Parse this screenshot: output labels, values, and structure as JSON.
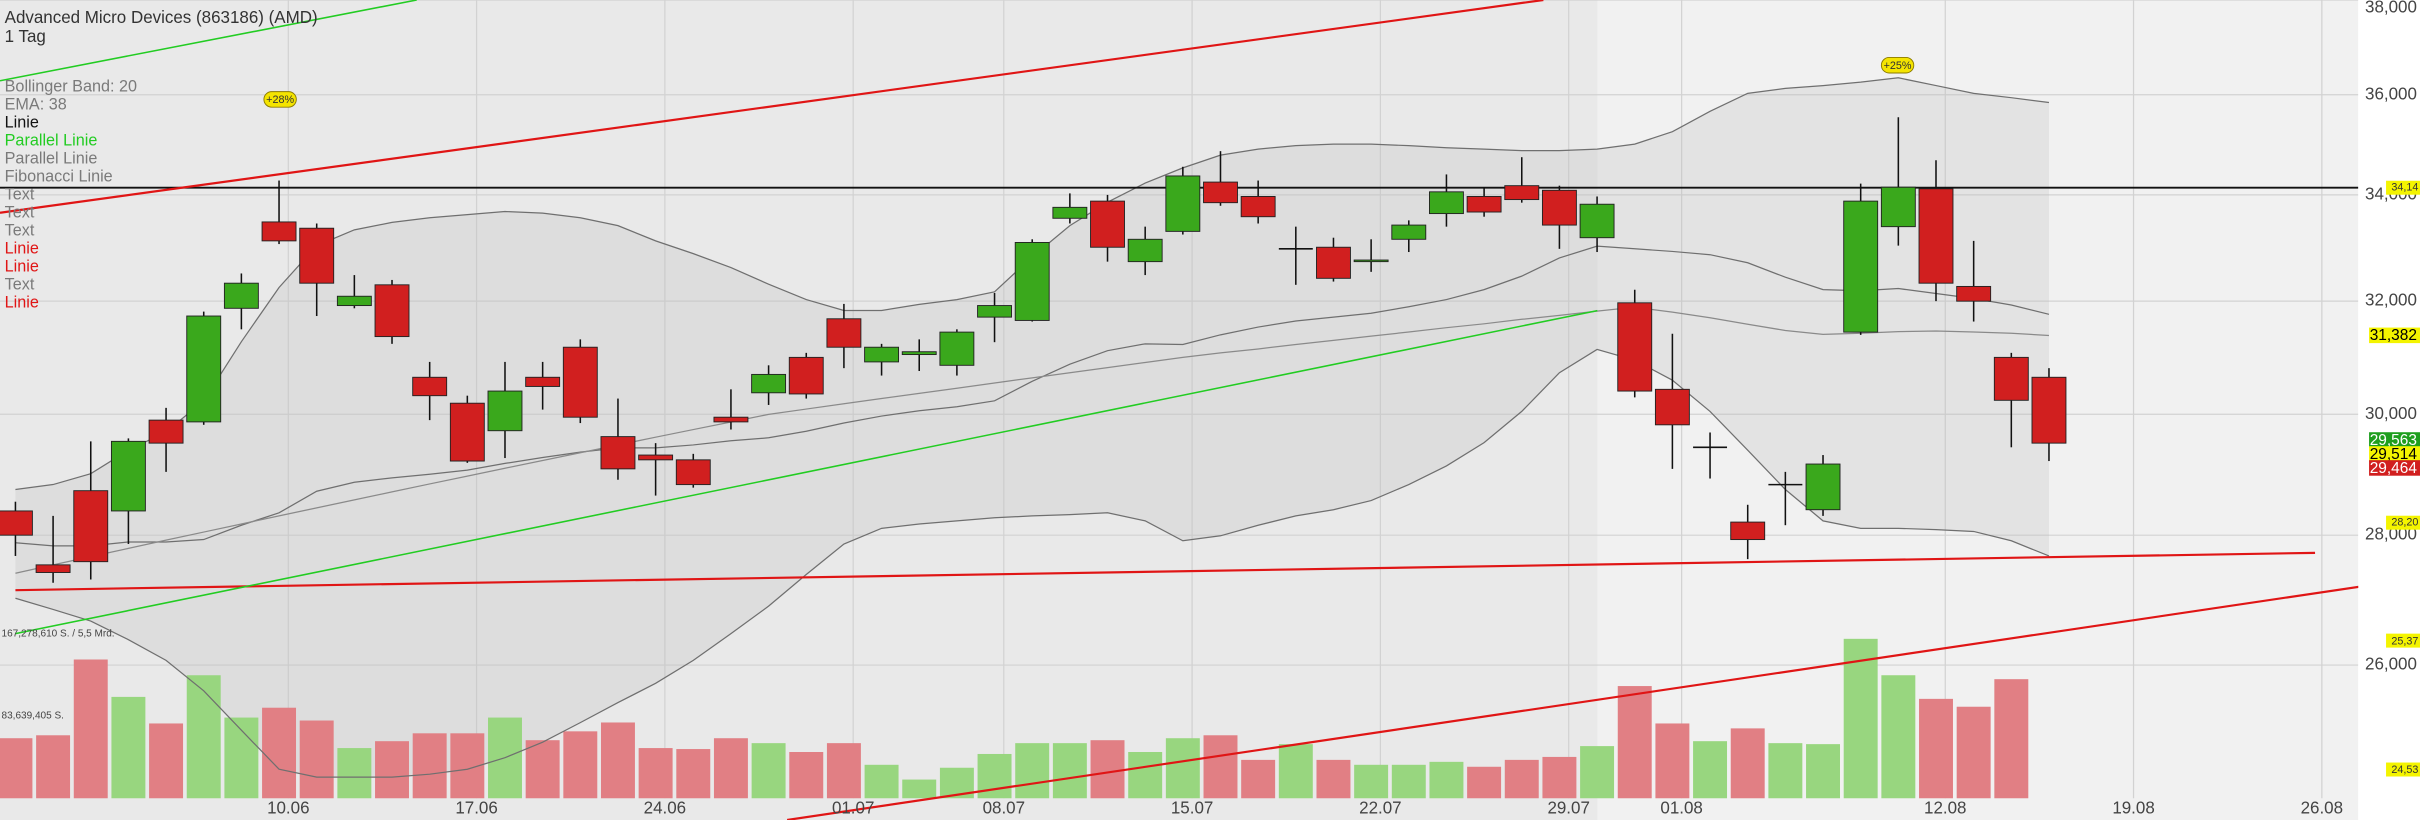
{
  "chart_data": {
    "type": "candlestick",
    "title": "Advanced Micro Devices (863186) (AMD)",
    "subtitle": "1 Tag",
    "categories": [
      null,
      null,
      null,
      null,
      null,
      null,
      null,
      "10.06",
      null,
      null,
      null,
      null,
      "17.06",
      null,
      null,
      null,
      null,
      "24.06",
      null,
      null,
      null,
      null,
      "01.07",
      null,
      null,
      null,
      "08.07",
      null,
      null,
      null,
      null,
      "15.07",
      null,
      null,
      null,
      null,
      "22.07",
      null,
      null,
      null,
      null,
      "29.07",
      null,
      null,
      "01.08",
      null,
      null,
      null,
      null,
      null,
      null,
      "12.08",
      null,
      null,
      null,
      null,
      "19.08",
      null,
      null,
      null,
      null,
      "26.08"
    ],
    "open": [
      28390,
      27530,
      28720,
      28390,
      29900,
      29870,
      31870,
      33480,
      33360,
      31920,
      32300,
      30640,
      30190,
      29720,
      30640,
      31170,
      29620,
      29310,
      29230,
      29950,
      30370,
      30990,
      31680,
      30910,
      31040,
      30850,
      31710,
      31650,
      33550,
      33880,
      32730,
      33300,
      34250,
      33970,
      32970,
      33000,
      32730,
      33150,
      33640,
      33970,
      34180,
      34090,
      33180,
      31970,
      30430,
      29440,
      28210,
      28820,
      28410,
      31440,
      33390,
      34120,
      32270,
      30990,
      30640,
      null,
      null,
      null,
      null,
      null,
      null,
      null
    ],
    "high": [
      28540,
      28310,
      29540,
      29590,
      30110,
      31810,
      32510,
      34280,
      33450,
      32480,
      32390,
      30910,
      30320,
      30910,
      30910,
      31310,
      30270,
      29510,
      29330,
      30430,
      30850,
      31070,
      31950,
      31230,
      31310,
      31490,
      32150,
      33150,
      34030,
      34000,
      33390,
      34550,
      34860,
      34280,
      33390,
      33180,
      33150,
      33510,
      34400,
      34150,
      34740,
      34180,
      33970,
      32210,
      31410,
      29690,
      28490,
      29030,
      29310,
      34220,
      35540,
      34680,
      33120,
      31070,
      30800,
      null,
      null,
      null,
      null,
      null,
      null,
      null
    ],
    "low": [
      27670,
      27250,
      27300,
      27860,
      29030,
      29820,
      31490,
      33060,
      31730,
      31870,
      31230,
      29900,
      29180,
      29260,
      30080,
      29850,
      28900,
      28640,
      28770,
      29740,
      30160,
      30270,
      30800,
      30670,
      30750,
      30670,
      31260,
      31630,
      33450,
      32730,
      32480,
      33240,
      33790,
      33450,
      32300,
      32360,
      32540,
      32910,
      33390,
      33580,
      33850,
      32970,
      32910,
      30290,
      29080,
      28920,
      27620,
      28160,
      28310,
      31390,
      33030,
      32000,
      31630,
      29440,
      29210,
      null,
      null,
      null,
      null,
      null,
      null,
      null
    ],
    "close": [
      28000,
      27410,
      27580,
      29540,
      29510,
      31730,
      32330,
      33120,
      32330,
      32090,
      31360,
      30320,
      29210,
      30400,
      30480,
      29950,
      29080,
      29230,
      28820,
      29870,
      30690,
      30350,
      31170,
      31170,
      31090,
      31440,
      31920,
      33090,
      33760,
      33000,
      33150,
      34370,
      33850,
      33580,
      32970,
      32420,
      32760,
      33420,
      34060,
      33670,
      33910,
      33420,
      33820,
      30400,
      29820,
      29440,
      27930,
      28820,
      29160,
      33880,
      34150,
      32330,
      32000,
      30240,
      29510,
      null,
      null,
      null,
      null,
      null,
      null,
      null
    ],
    "up_color": "#3aa81c",
    "down_color": "#d11f1f",
    "volume": {
      "values": [
        61000000,
        64000000,
        141000000,
        103000000,
        76000000,
        125000000,
        82000000,
        92000000,
        79000000,
        51000000,
        58000000,
        66000000,
        66000000,
        82000000,
        59000000,
        68000000,
        77000000,
        51000000,
        50000000,
        61000000,
        56000000,
        47000000,
        56000000,
        34000000,
        19000000,
        31000000,
        45000000,
        56000000,
        56000000,
        59000000,
        47000000,
        61000000,
        64000000,
        39000000,
        55000000,
        39000000,
        34000000,
        34000000,
        37000000,
        32000000,
        39000000,
        42000000,
        53000000,
        114000000,
        76000000,
        58000000,
        71000000,
        56000000,
        55000000,
        162000000,
        125000000,
        101000000,
        93000000,
        121000000,
        null,
        null,
        null,
        null,
        null,
        null,
        null,
        null
      ],
      "vlim": [
        0,
        167278610
      ],
      "ticks": [
        {
          "value": 167278610,
          "label": "167,278,610 S. / 5,5 Mrd."
        },
        {
          "value": 83639405,
          "label": "83,639,405 S."
        }
      ],
      "up_color": "#98d67f",
      "down_color": "#e17f84"
    },
    "bollinger": {
      "name": "Bollinger Band: 20",
      "color": "#6f6f6f",
      "upper": [
        28740,
        28820,
        29000,
        29390,
        29700,
        30230,
        31270,
        32250,
        33030,
        33330,
        33470,
        33560,
        33620,
        33680,
        33650,
        33560,
        33410,
        33120,
        32880,
        32620,
        32310,
        32030,
        31830,
        31830,
        31940,
        32030,
        32170,
        32820,
        33410,
        33860,
        34230,
        34530,
        34780,
        34900,
        34970,
        35000,
        35000,
        34970,
        34930,
        34900,
        34870,
        34870,
        34900,
        35000,
        35250,
        35660,
        36030,
        36130,
        36190,
        36260,
        36350,
        36190,
        36030,
        35940,
        35840,
        null,
        null,
        null,
        null,
        null,
        null,
        null
      ],
      "middle": [
        27880,
        27830,
        27830,
        27890,
        27890,
        27930,
        28160,
        28360,
        28710,
        28860,
        28930,
        28990,
        29060,
        29170,
        29270,
        29360,
        29430,
        29430,
        29480,
        29550,
        29600,
        29710,
        29850,
        29970,
        30060,
        30130,
        30230,
        30570,
        30870,
        31110,
        31230,
        31220,
        31390,
        31530,
        31640,
        31710,
        31780,
        31900,
        32030,
        32210,
        32460,
        32800,
        33020,
        32970,
        32920,
        32860,
        32710,
        32440,
        32210,
        32190,
        32230,
        32140,
        32050,
        31930,
        31760,
        null,
        null,
        null,
        null,
        null,
        null,
        null
      ],
      "lower": [
        27010,
        26840,
        26660,
        26380,
        26070,
        25620,
        25050,
        24500,
        24390,
        24390,
        24390,
        24430,
        24500,
        24660,
        24880,
        25160,
        25450,
        25730,
        26070,
        26470,
        26890,
        27380,
        27860,
        28110,
        28180,
        28230,
        28280,
        28310,
        28330,
        28360,
        28230,
        27910,
        27990,
        28160,
        28310,
        28410,
        28560,
        28820,
        29130,
        29520,
        30050,
        30720,
        31130,
        30940,
        30590,
        30050,
        29390,
        28740,
        28230,
        28110,
        28110,
        28090,
        28060,
        27910,
        27670,
        null,
        null,
        null,
        null,
        null,
        null,
        null
      ]
    },
    "ema": {
      "name": "EMA: 38",
      "color": "#8a8a8a",
      "values": [
        27400,
        27530,
        27660,
        27790,
        27920,
        28050,
        28180,
        28310,
        28440,
        28570,
        28700,
        28830,
        28960,
        29090,
        29220,
        29350,
        29480,
        29610,
        29740,
        29870,
        30000,
        30090,
        30180,
        30270,
        30360,
        30450,
        30540,
        30630,
        30720,
        30810,
        30900,
        30990,
        31070,
        31140,
        31220,
        31290,
        31370,
        31440,
        31520,
        31590,
        31670,
        31740,
        31820,
        31890,
        31800,
        31700,
        31580,
        31470,
        31400,
        31420,
        31450,
        31460,
        31440,
        31420,
        31380,
        null,
        null,
        null,
        null,
        null,
        null,
        null
      ]
    },
    "drawings": [
      {
        "name": "Linie",
        "color": "#111111"
      },
      {
        "name": "Parallel Linie",
        "color": "#22cc22"
      },
      {
        "name": "Parallel Linie",
        "color": "#7a7a7a"
      },
      {
        "name": "Fibonacci Linie",
        "color": "#7a7a7a"
      },
      {
        "name": "Text",
        "color": "#7a7a7a"
      },
      {
        "name": "Text",
        "color": "#7a7a7a"
      },
      {
        "name": "Text",
        "color": "#7a7a7a"
      },
      {
        "name": "Linie",
        "color": "#e01515"
      },
      {
        "name": "Linie",
        "color": "#e01515"
      },
      {
        "name": "Text",
        "color": "#7a7a7a"
      },
      {
        "name": "Linie",
        "color": "#e01515"
      }
    ],
    "log_scale": true,
    "grid": true,
    "ylim": [
      23800,
      38000
    ],
    "yticks": [
      {
        "value": 38000,
        "label": "38,000"
      },
      {
        "value": 36000,
        "label": "36,000"
      },
      {
        "value": 34000,
        "label": "34,000"
      },
      {
        "value": 32000,
        "label": "32,000"
      },
      {
        "value": 30000,
        "label": "30,000"
      },
      {
        "value": 28000,
        "label": "28,000"
      },
      {
        "value": 26000,
        "label": "26,000"
      }
    ],
    "price_labels": [
      {
        "value": 31382,
        "label": "31,382",
        "color": "#f4f400",
        "text_color": "#000000"
      },
      {
        "value": 29563,
        "label": "29,563",
        "color": "#1e9e1e",
        "text_color": "#ffffff"
      },
      {
        "value": 29514,
        "label": "29,514",
        "color": "#f4f400",
        "text_color": "#000000"
      },
      {
        "value": 29464,
        "label": "29,464",
        "color": "#d11f1f",
        "text_color": "#ffffff"
      }
    ],
    "line_labels": [
      {
        "value": 34140,
        "label": "34,14"
      },
      {
        "value": 28200,
        "label": "28,20"
      }
    ],
    "side_labels": [
      "25,37",
      "24,53"
    ],
    "annotations": [
      "+28%",
      "+25%"
    ]
  }
}
